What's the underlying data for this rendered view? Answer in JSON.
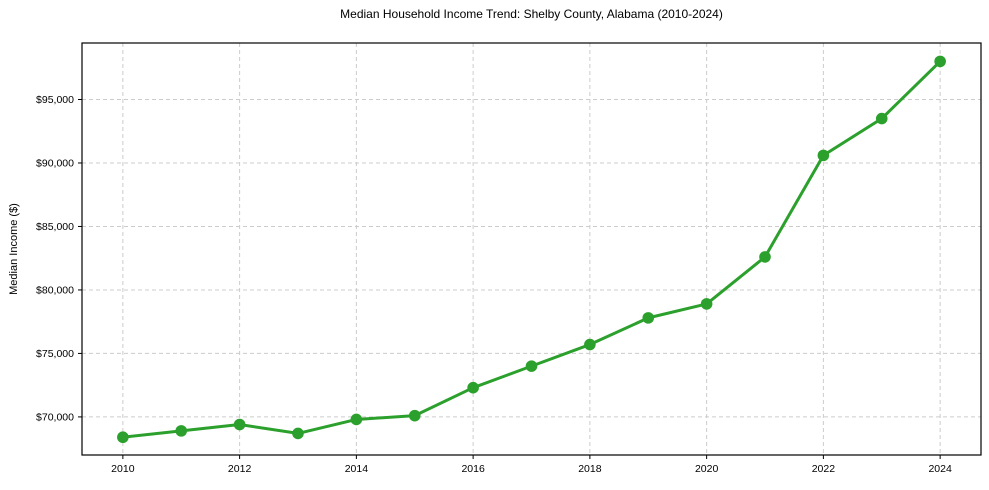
{
  "chart_data": {
    "type": "line",
    "title": "Median Household Income Trend: Shelby County, Alabama (2010-2024)",
    "xlabel": "",
    "ylabel": "Median Income ($)",
    "x": [
      2010,
      2011,
      2012,
      2013,
      2014,
      2015,
      2016,
      2017,
      2018,
      2019,
      2020,
      2021,
      2022,
      2023,
      2024
    ],
    "values": [
      68400,
      68900,
      69400,
      68700,
      69800,
      70100,
      72300,
      74000,
      75700,
      77800,
      78900,
      82600,
      90600,
      93500,
      98000
    ],
    "xlim": [
      2009.3,
      2024.7
    ],
    "ylim": [
      67000,
      99450
    ],
    "xticks": {
      "values": [
        2010,
        2012,
        2014,
        2016,
        2018,
        2020,
        2022,
        2024
      ],
      "labels": [
        "2010",
        "2012",
        "2014",
        "2016",
        "2018",
        "2020",
        "2022",
        "2024"
      ]
    },
    "yticks": {
      "values": [
        70000,
        75000,
        80000,
        85000,
        90000,
        95000
      ],
      "labels": [
        "$70,000",
        "$75,000",
        "$80,000",
        "$85,000",
        "$90,000",
        "$95,000"
      ]
    },
    "grid": true,
    "grid_style": "dashed",
    "legend": false,
    "marker": "circle",
    "line_color": "#2ca02c"
  },
  "colors": {
    "line": "#2ca02c",
    "grid": "#cccccc",
    "spine": "#000000",
    "tick": "#000000",
    "text": "#000000",
    "background": "#ffffff"
  }
}
